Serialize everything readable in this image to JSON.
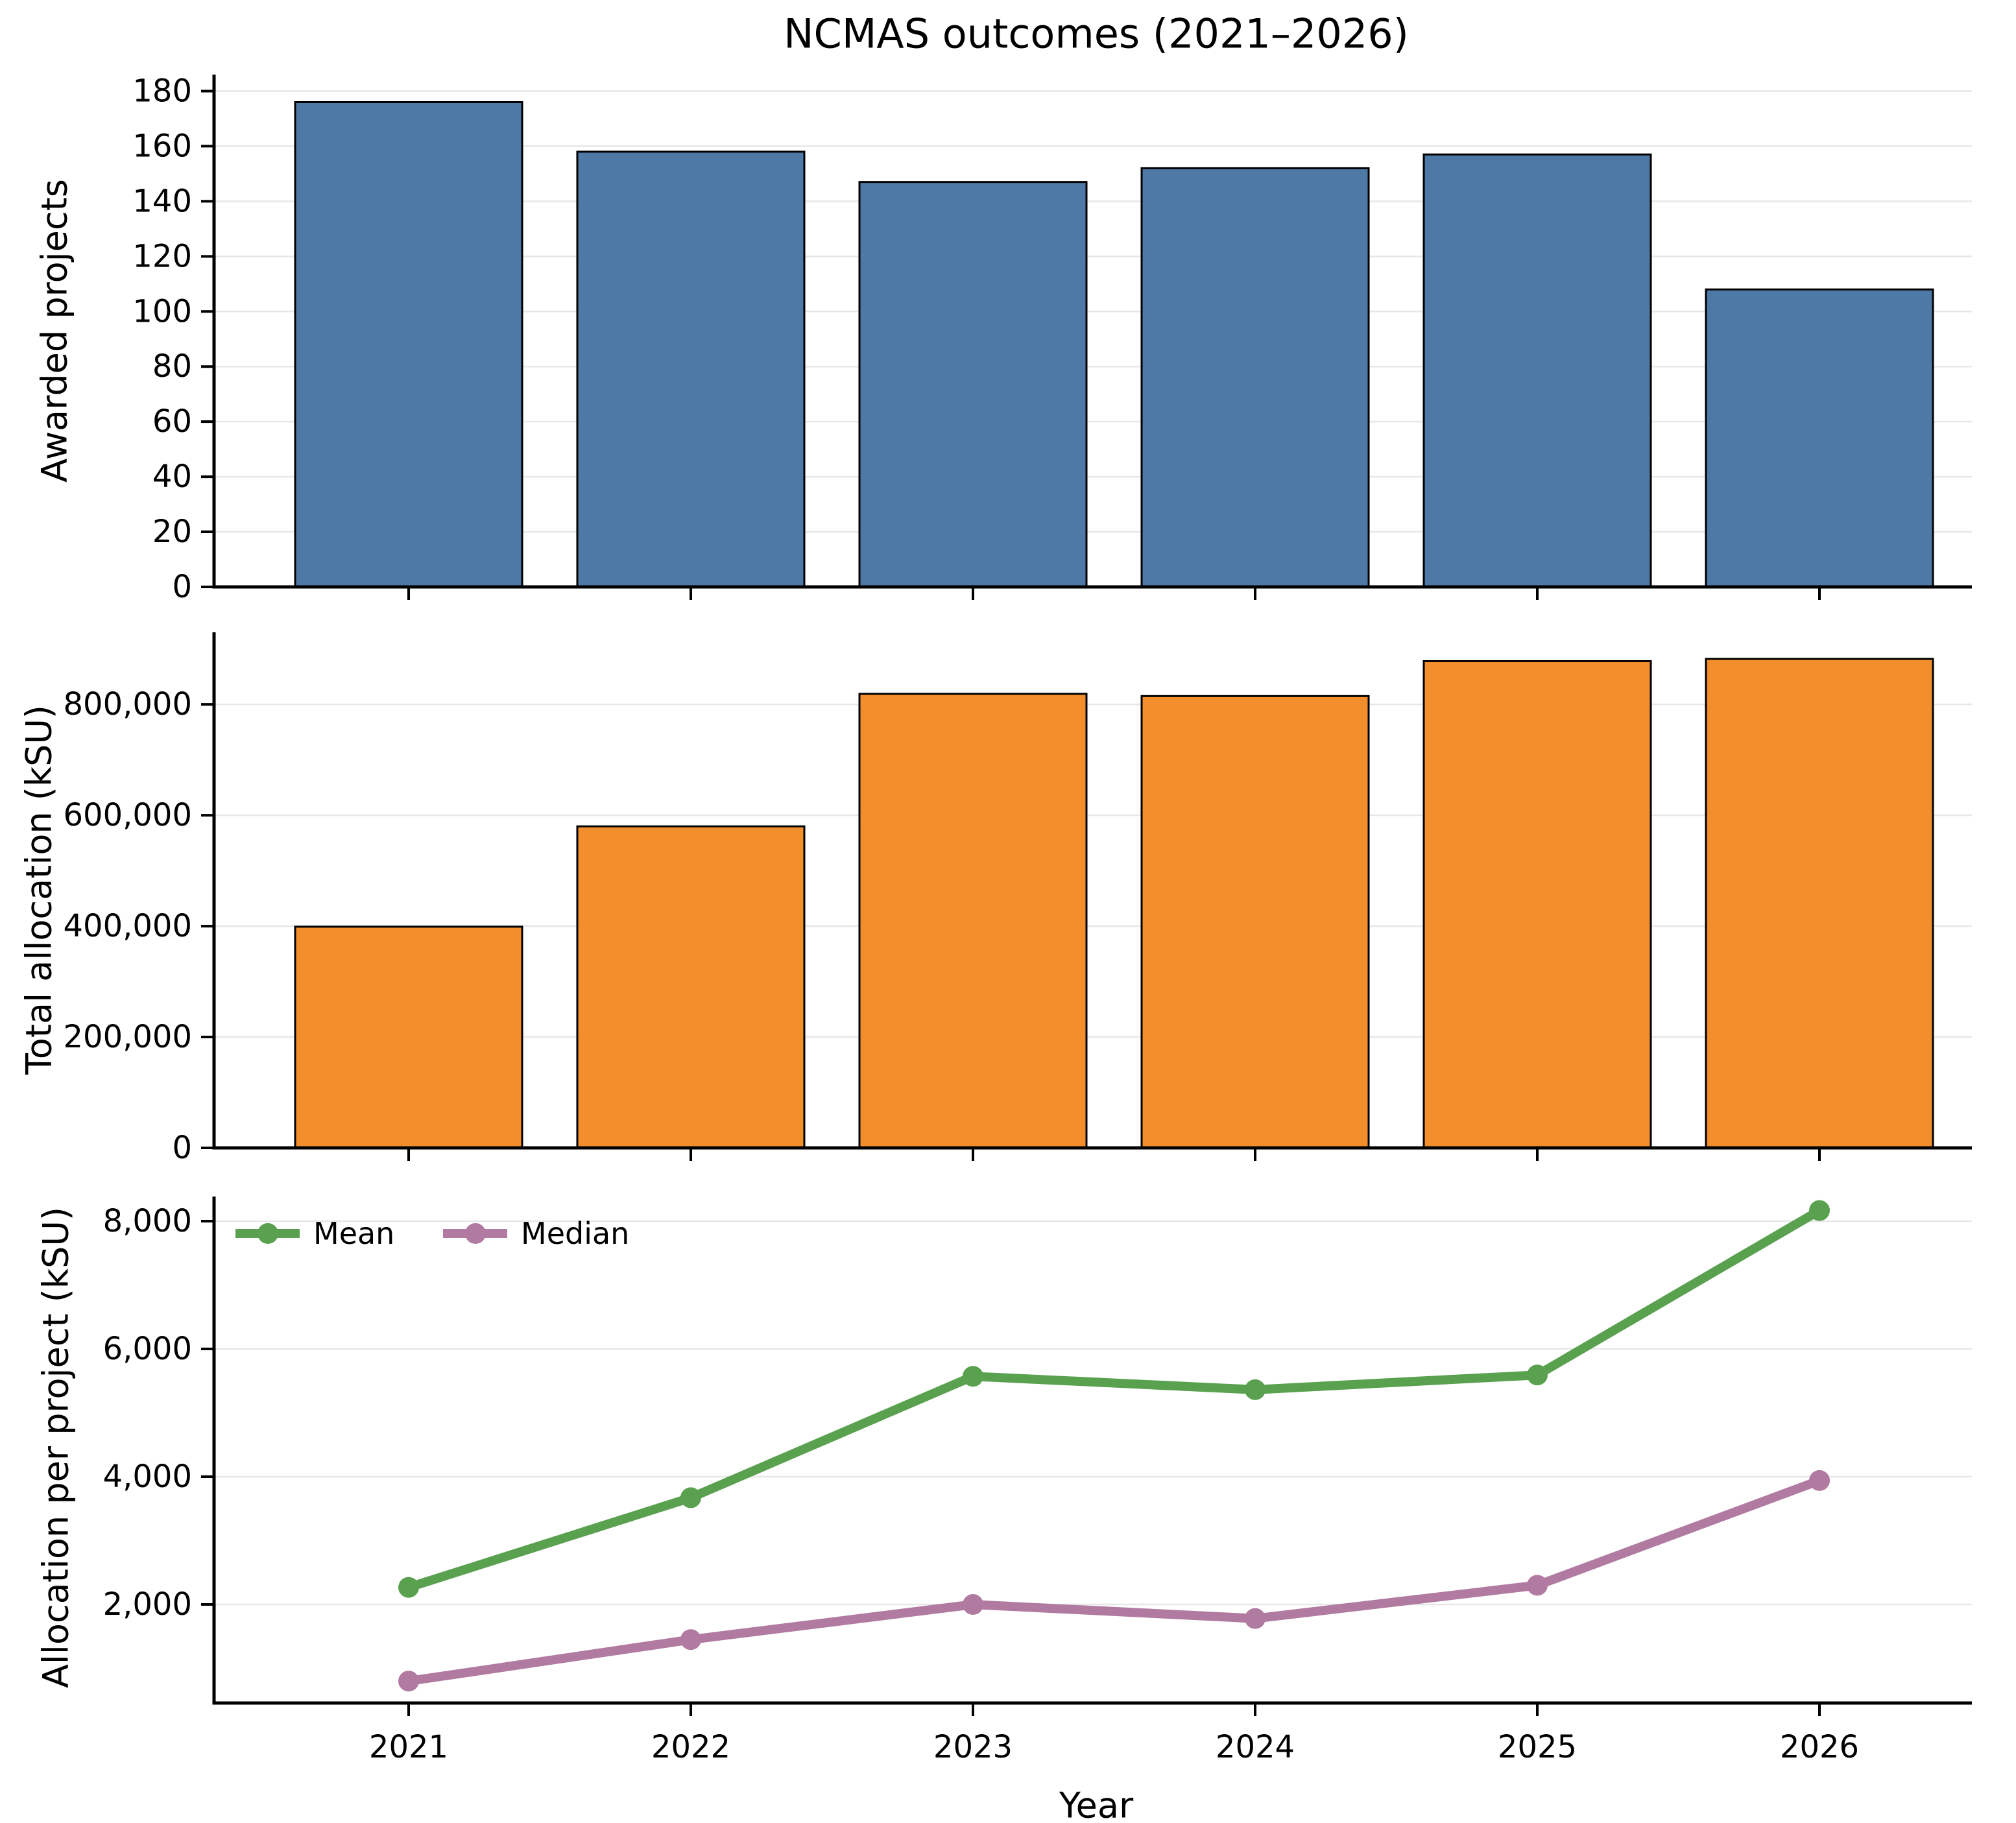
{
  "title": "NCMAS outcomes (2021–2026)",
  "xlabel": "Year",
  "categories": [
    "2021",
    "2022",
    "2023",
    "2024",
    "2025",
    "2026"
  ],
  "chart_data": [
    {
      "type": "bar",
      "ylabel": "Awarded projects",
      "color": "#4E79A7",
      "edge_color": "#000000",
      "categories": [
        "2021",
        "2022",
        "2023",
        "2024",
        "2025",
        "2026"
      ],
      "values": [
        176,
        158,
        147,
        152,
        157,
        108
      ],
      "yticks": [
        0,
        20,
        40,
        60,
        80,
        100,
        120,
        140,
        160,
        180
      ],
      "ylim": [
        0,
        186
      ],
      "grid": "horizontal"
    },
    {
      "type": "bar",
      "ylabel": "Total allocation (kSU)",
      "color": "#F28E2B",
      "edge_color": "#000000",
      "categories": [
        "2021",
        "2022",
        "2023",
        "2024",
        "2025",
        "2026"
      ],
      "values": [
        399000,
        580000,
        819000,
        815000,
        878000,
        882000
      ],
      "yticks": [
        0,
        200000,
        400000,
        600000,
        800000
      ],
      "ylim": [
        0,
        930000
      ],
      "grid": "horizontal"
    },
    {
      "type": "line",
      "ylabel": "Allocation per project (kSU)",
      "categories": [
        "2021",
        "2022",
        "2023",
        "2024",
        "2025",
        "2026"
      ],
      "series": [
        {
          "name": "Mean",
          "color": "#59A14F",
          "values": [
            2267,
            3671,
            5571,
            5362,
            5592,
            8167
          ]
        },
        {
          "name": "Median",
          "color": "#B07AA1",
          "values": [
            800,
            1450,
            2000,
            1780,
            2300,
            3940
          ]
        }
      ],
      "yticks": [
        2000,
        4000,
        6000,
        8000
      ],
      "ylim": [
        457,
        8386
      ],
      "grid": "horizontal",
      "legend_position": "upper left"
    }
  ]
}
